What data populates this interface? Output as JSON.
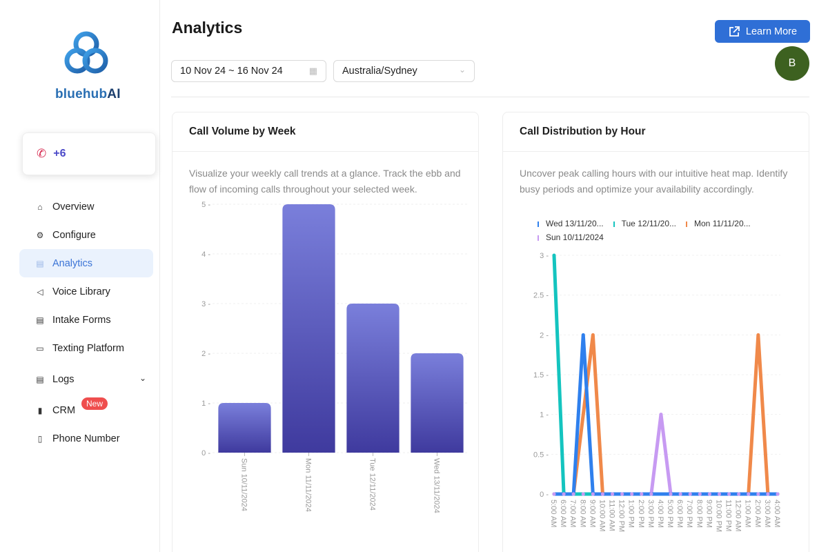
{
  "brand": {
    "part1": "bluehub",
    "part2": "AI"
  },
  "phone": {
    "number": "+6"
  },
  "sidebar": {
    "items": [
      {
        "label": "Overview",
        "icon": "home-icon",
        "glyph": "⌂"
      },
      {
        "label": "Configure",
        "icon": "gear-icon",
        "glyph": "⚙"
      },
      {
        "label": "Analytics",
        "icon": "chart-icon",
        "glyph": "▤",
        "active": true
      },
      {
        "label": "Voice Library",
        "icon": "speaker-icon",
        "glyph": "◁"
      },
      {
        "label": "Intake Forms",
        "icon": "form-icon",
        "glyph": "▤"
      },
      {
        "label": "Texting Platform",
        "icon": "message-icon",
        "glyph": "▭"
      },
      {
        "label": "Logs",
        "icon": "logs-icon",
        "glyph": "▤",
        "chevron": true
      },
      {
        "label": "CRM",
        "icon": "bars-icon",
        "glyph": "▮",
        "badge": "New"
      },
      {
        "label": "Phone Number",
        "icon": "mobile-icon",
        "glyph": "▯"
      }
    ]
  },
  "header": {
    "title": "Analytics",
    "learn_more": "Learn More",
    "avatar_initial": "B",
    "date_range": "10 Nov 24 ~ 16 Nov 24",
    "timezone": "Australia/Sydney"
  },
  "cards": {
    "weekly": {
      "title": "Call Volume by Week",
      "description": "Visualize your weekly call trends at a glance. Track the ebb and flow of incoming calls throughout your selected week."
    },
    "hourly": {
      "title": "Call Distribution by Hour",
      "description": "Uncover peak calling hours with our intuitive heat map. Identify busy periods and optimize your availability accordingly."
    }
  },
  "colors": {
    "accent": "#2f6fd6",
    "bar_top": "#7a7fdb",
    "bar_bottom": "#3f3a9e",
    "wed": "#2f80ed",
    "tue": "#14c4bf",
    "mon": "#f0894a",
    "sun": "#c79af2"
  },
  "chart_data": [
    {
      "type": "bar",
      "categories": [
        "Sun 10/11/2024",
        "Mon 11/11/2024",
        "Tue 12/11/2024",
        "Wed 13/11/2024"
      ],
      "values": [
        1,
        5,
        3,
        2
      ],
      "ylim": [
        0,
        5
      ],
      "yticks": [
        0,
        1,
        2,
        3,
        4,
        5
      ],
      "grid": true
    },
    {
      "type": "line",
      "x": [
        "5:00 AM",
        "6:00 AM",
        "7:00 AM",
        "8:00 AM",
        "9:00 AM",
        "10:00 AM",
        "11:00 AM",
        "12:00 PM",
        "1:00 PM",
        "2:00 PM",
        "3:00 PM",
        "4:00 PM",
        "5:00 PM",
        "6:00 PM",
        "7:00 PM",
        "8:00 PM",
        "9:00 PM",
        "10:00 PM",
        "11:00 PM",
        "12:00 AM",
        "1:00 AM",
        "2:00 AM",
        "3:00 AM",
        "4:00 AM"
      ],
      "ylim": [
        0,
        3
      ],
      "yticks": [
        "0",
        "0.5",
        "1",
        "1.5",
        "2",
        "2.5",
        "3"
      ],
      "legend_position": "top",
      "series": [
        {
          "name": "Wed 13/11/20...",
          "color": "#2f80ed",
          "values": [
            0,
            0,
            0,
            2,
            0,
            0,
            0,
            0,
            0,
            0,
            0,
            0,
            0,
            0,
            0,
            0,
            0,
            0,
            0,
            0,
            0,
            0,
            0,
            0
          ]
        },
        {
          "name": "Tue 12/11/20...",
          "color": "#14c4bf",
          "values": [
            3,
            0,
            0,
            0,
            0,
            0,
            0,
            0,
            0,
            0,
            0,
            0,
            0,
            0,
            0,
            0,
            0,
            0,
            0,
            0,
            0,
            0,
            0,
            0
          ]
        },
        {
          "name": "Mon 11/11/20...",
          "color": "#f0894a",
          "values": [
            0,
            0,
            0,
            1,
            2,
            0,
            0,
            0,
            0,
            0,
            0,
            0,
            0,
            0,
            0,
            0,
            0,
            0,
            0,
            0,
            0,
            2,
            0,
            0
          ]
        },
        {
          "name": "Sun 10/11/2024",
          "color": "#c79af2",
          "values": [
            0,
            0,
            0,
            0,
            0,
            0,
            0,
            0,
            0,
            0,
            0,
            1,
            0,
            0,
            0,
            0,
            0,
            0,
            0,
            0,
            0,
            0,
            0,
            0
          ]
        }
      ]
    }
  ]
}
